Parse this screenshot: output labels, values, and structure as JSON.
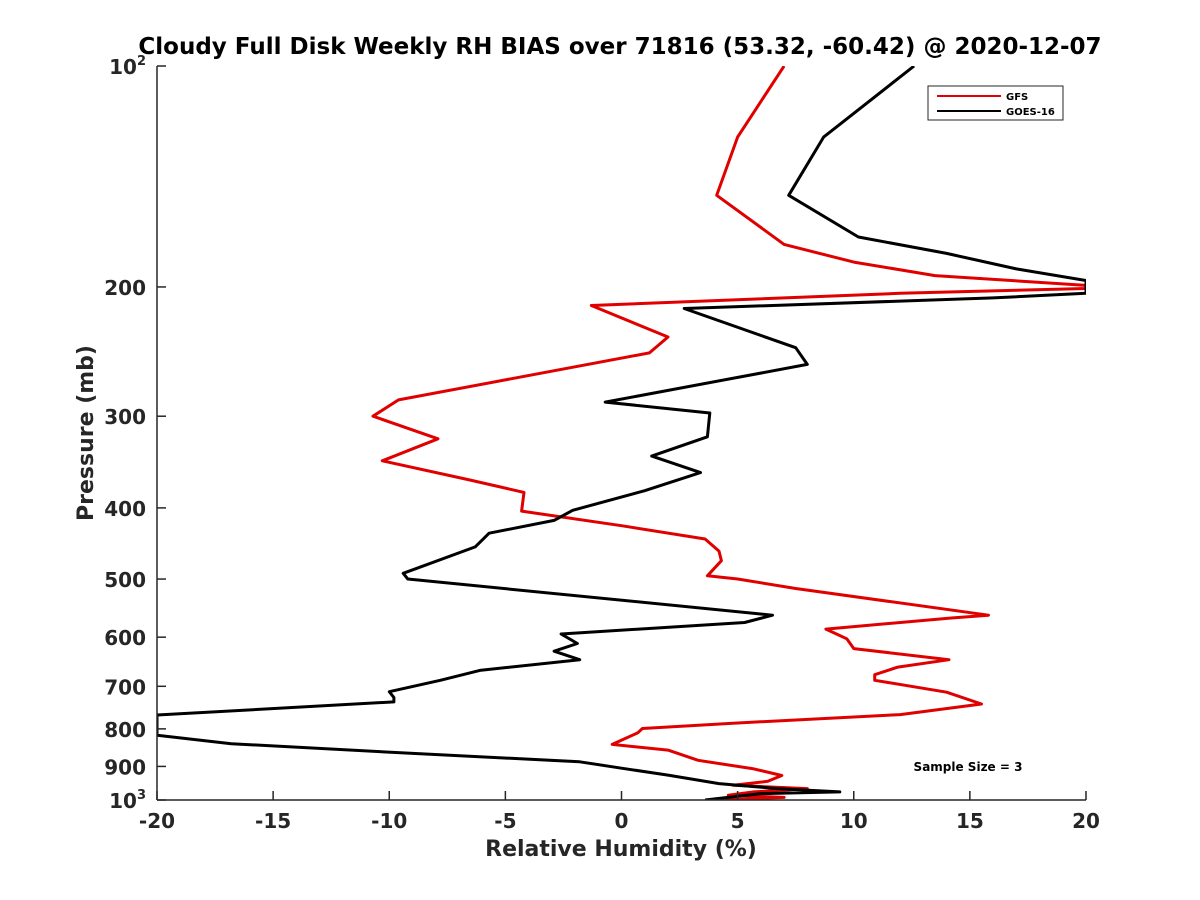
{
  "chart_data": {
    "type": "line",
    "title": "Cloudy Full Disk Weekly RH BIAS over 71816 (53.32, -60.42) @ 2020-12-07",
    "xlabel": "Relative Humidity (%)",
    "ylabel": "Pressure (mb)",
    "xlim": [
      -20,
      20
    ],
    "ylim": [
      100,
      1000
    ],
    "y_scale": "log",
    "y_direction": "reversed",
    "x_ticks": [
      -20,
      -15,
      -10,
      -5,
      0,
      5,
      10,
      15,
      20
    ],
    "x_tick_labels": [
      "-20",
      "-15",
      "-10",
      "-5",
      "0",
      "5",
      "10",
      "15",
      "20"
    ],
    "y_ticks": [
      100,
      200,
      300,
      400,
      500,
      600,
      700,
      800,
      900,
      1000
    ],
    "y_tick_labels": [
      {
        "base": "10",
        "sup": "2"
      },
      {
        "base": "200"
      },
      {
        "base": "300"
      },
      {
        "base": "400"
      },
      {
        "base": "500"
      },
      {
        "base": "600"
      },
      {
        "base": "700"
      },
      {
        "base": "800"
      },
      {
        "base": "900"
      },
      {
        "base": "10",
        "sup": "3"
      }
    ],
    "grid": false,
    "legend_position": "top-right",
    "annotation": "Sample Size = 3",
    "series": [
      {
        "name": "GFS",
        "color": "#e00000",
        "points": [
          [
            7.0,
            100
          ],
          [
            5.0,
            125
          ],
          [
            4.1,
            150
          ],
          [
            7.0,
            175
          ],
          [
            10.0,
            185
          ],
          [
            13.5,
            193
          ],
          [
            20.0,
            199
          ],
          [
            20.0,
            201
          ],
          [
            12.0,
            204
          ],
          [
            -1.3,
            212
          ],
          [
            2.0,
            234
          ],
          [
            1.2,
            246
          ],
          [
            -9.6,
            285
          ],
          [
            -10.7,
            300
          ],
          [
            -7.9,
            322
          ],
          [
            -10.3,
            345
          ],
          [
            -6.6,
            366
          ],
          [
            -4.2,
            381
          ],
          [
            -4.3,
            404
          ],
          [
            0.0,
            423
          ],
          [
            3.6,
            441
          ],
          [
            4.2,
            458
          ],
          [
            4.3,
            472
          ],
          [
            3.7,
            495
          ],
          [
            5.0,
            500
          ],
          [
            7.5,
            515
          ],
          [
            15.8,
            560
          ],
          [
            14.2,
            565
          ],
          [
            8.8,
            585
          ],
          [
            9.7,
            603
          ],
          [
            10.0,
            622
          ],
          [
            14.1,
            644
          ],
          [
            11.9,
            659
          ],
          [
            10.9,
            675
          ],
          [
            10.9,
            687
          ],
          [
            14.0,
            713
          ],
          [
            15.5,
            740
          ],
          [
            12.0,
            765
          ],
          [
            4.8,
            786
          ],
          [
            0.9,
            799
          ],
          [
            0.7,
            810
          ],
          [
            -0.4,
            840
          ],
          [
            2.0,
            855
          ],
          [
            3.3,
            883
          ],
          [
            5.7,
            907
          ],
          [
            6.9,
            926
          ],
          [
            6.3,
            943
          ],
          [
            4.8,
            955
          ],
          [
            8.0,
            965
          ],
          [
            5.7,
            975
          ],
          [
            4.6,
            985
          ],
          [
            7.0,
            992
          ],
          [
            4.2,
            1000
          ]
        ]
      },
      {
        "name": "GOES-16",
        "color": "#000000",
        "points": [
          [
            12.6,
            100
          ],
          [
            8.7,
            125
          ],
          [
            7.2,
            150
          ],
          [
            10.2,
            171
          ],
          [
            14.0,
            180
          ],
          [
            17.0,
            189
          ],
          [
            20.0,
            196
          ],
          [
            20.0,
            204
          ],
          [
            16.0,
            207
          ],
          [
            2.7,
            214
          ],
          [
            7.5,
            242
          ],
          [
            8.0,
            255
          ],
          [
            -0.7,
            287
          ],
          [
            3.8,
            297
          ],
          [
            3.7,
            320
          ],
          [
            1.3,
            340
          ],
          [
            3.4,
            358
          ],
          [
            1.0,
            379
          ],
          [
            -2.1,
            403
          ],
          [
            -2.9,
            416
          ],
          [
            -5.7,
            433
          ],
          [
            -6.3,
            452
          ],
          [
            -9.4,
            491
          ],
          [
            -9.2,
            500
          ],
          [
            6.5,
            560
          ],
          [
            5.3,
            573
          ],
          [
            -2.6,
            594
          ],
          [
            -1.9,
            612
          ],
          [
            -2.9,
            627
          ],
          [
            -1.8,
            644
          ],
          [
            -6.1,
            666
          ],
          [
            -7.8,
            687
          ],
          [
            -10.0,
            712
          ],
          [
            -9.8,
            725
          ],
          [
            -9.8,
            735
          ],
          [
            -20.0,
            766
          ],
          [
            -20.0,
            816
          ],
          [
            -16.8,
            838
          ],
          [
            -9.3,
            863
          ],
          [
            -1.8,
            887
          ],
          [
            0.0,
            905
          ],
          [
            2.0,
            925
          ],
          [
            4.2,
            950
          ],
          [
            6.7,
            965
          ],
          [
            9.4,
            975
          ],
          [
            6.0,
            980
          ],
          [
            3.6,
            1000
          ]
        ]
      }
    ]
  }
}
